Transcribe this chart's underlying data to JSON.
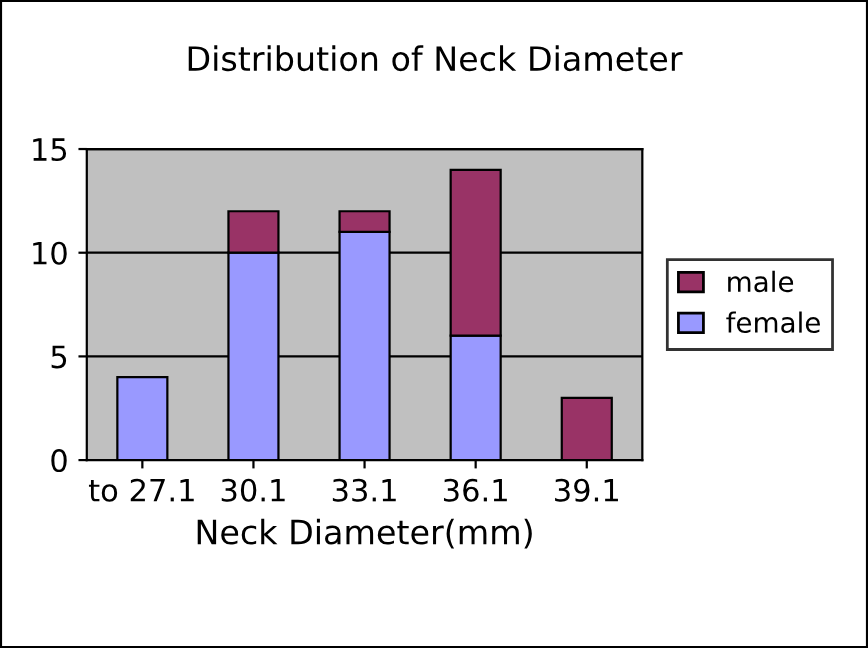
{
  "chart_data": {
    "type": "bar",
    "title": "Distribution of Neck Diameter",
    "xlabel": "Neck Diameter(mm)",
    "categories": [
      "to 27.1",
      "30.1",
      "33.1",
      "36.1",
      "39.1"
    ],
    "stacked": true,
    "series": [
      {
        "name": "female",
        "color": "#9999ff",
        "values": [
          4,
          10,
          11,
          6,
          0
        ]
      },
      {
        "name": "male",
        "color": "#993366",
        "values": [
          0,
          2,
          1,
          8,
          3
        ]
      }
    ],
    "ylim": [
      0,
      15
    ],
    "yticks": [
      0,
      5,
      10,
      15
    ],
    "grid": "y",
    "legend": "right"
  }
}
